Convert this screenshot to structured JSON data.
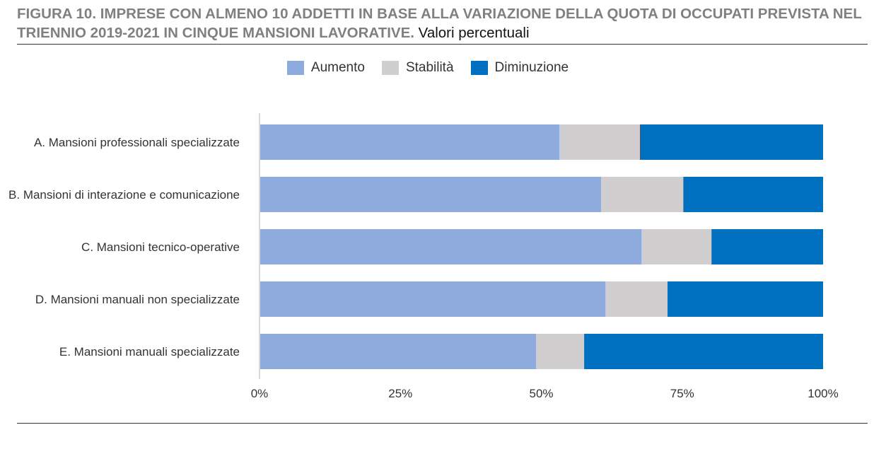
{
  "title": {
    "bold": "FIGURA 10. IMPRESE CON ALMENO 10 ADDETTI IN BASE ALLA VARIAZIONE DELLA QUOTA DI OCCUPATI PREVISTA NEL TRIENNIO 2019-2021 IN CINQUE MANSIONI LAVORATIVE.",
    "normal": "Valori percentuali"
  },
  "chart_data": {
    "type": "bar",
    "orientation": "horizontal",
    "stacked": "percent",
    "categories": [
      "A. Mansioni professionali specializzate",
      "B. Mansioni di interazione e comunicazione",
      "C. Mansioni tecnico-operative",
      "D. Mansioni manuali non specializzate",
      "E. Mansioni manuali specializzate"
    ],
    "series": [
      {
        "name": "Aumento",
        "color": "#8FAADC",
        "values": [
          53.2,
          60.6,
          67.8,
          61.4,
          49.1
        ]
      },
      {
        "name": "Stabilità",
        "color": "#D0CECE",
        "values": [
          14.3,
          14.6,
          12.4,
          11.0,
          8.5
        ]
      },
      {
        "name": "Diminuzione",
        "color": "#0070C0",
        "values": [
          32.5,
          24.8,
          19.8,
          27.6,
          42.4
        ]
      }
    ],
    "xlim": [
      0,
      100
    ],
    "x_ticks": [
      "0%",
      "25%",
      "50%",
      "75%",
      "100%"
    ],
    "legend": "top-center",
    "grid": false
  }
}
